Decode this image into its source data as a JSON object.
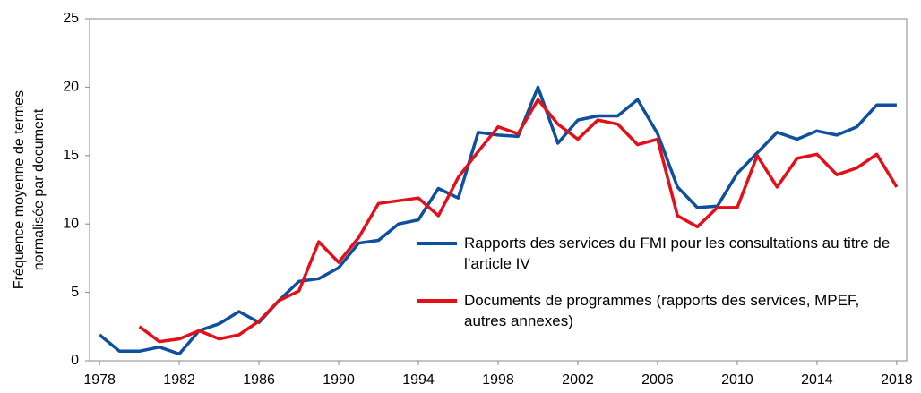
{
  "chart_data": {
    "type": "line",
    "ylabel": [
      "Fréquence moyenne de termes",
      "normalisée par document"
    ],
    "x": [
      1978,
      1979,
      1980,
      1981,
      1982,
      1983,
      1984,
      1985,
      1986,
      1987,
      1988,
      1989,
      1990,
      1991,
      1992,
      1993,
      1994,
      1995,
      1996,
      1997,
      1998,
      1999,
      2000,
      2001,
      2002,
      2003,
      2004,
      2005,
      2006,
      2007,
      2008,
      2009,
      2010,
      2011,
      2012,
      2013,
      2014,
      2015,
      2016,
      2017,
      2018
    ],
    "series": [
      {
        "name": "Rapports des services du FMI pour les consultations au titre de l’article IV",
        "color": "#0e4f9e",
        "values": [
          1.9,
          0.7,
          0.7,
          1.0,
          0.5,
          2.2,
          2.7,
          3.6,
          2.8,
          4.4,
          5.8,
          6.0,
          6.8,
          8.6,
          8.8,
          10.0,
          10.3,
          12.6,
          11.9,
          16.7,
          16.5,
          16.4,
          20.0,
          15.9,
          17.6,
          17.9,
          17.9,
          19.1,
          16.6,
          12.7,
          11.2,
          11.3,
          13.7,
          15.2,
          16.7,
          16.2,
          16.8,
          16.5,
          17.1,
          18.7,
          18.7
        ]
      },
      {
        "name": "Documents de programmes (rapports des services, MPEF, autres annexes)",
        "color": "#e3101a",
        "values": [
          null,
          null,
          2.5,
          1.4,
          1.6,
          2.2,
          1.6,
          1.9,
          2.9,
          4.4,
          5.1,
          8.7,
          7.2,
          9.0,
          11.5,
          11.7,
          11.9,
          10.6,
          13.4,
          15.3,
          17.1,
          16.6,
          19.1,
          17.3,
          16.2,
          17.6,
          17.3,
          15.8,
          16.2,
          10.6,
          9.8,
          11.2,
          11.2,
          15.0,
          12.7,
          14.8,
          15.1,
          13.6,
          14.1,
          15.1,
          12.7
        ]
      }
    ],
    "xlim": [
      1977.5,
      2018.5
    ],
    "xticks": [
      1978,
      1982,
      1986,
      1990,
      1994,
      1998,
      2002,
      2006,
      2010,
      2014,
      2018
    ],
    "ylim": [
      0,
      25
    ],
    "yticks": [
      0,
      5,
      10,
      15,
      20,
      25
    ],
    "legend": "center right"
  }
}
